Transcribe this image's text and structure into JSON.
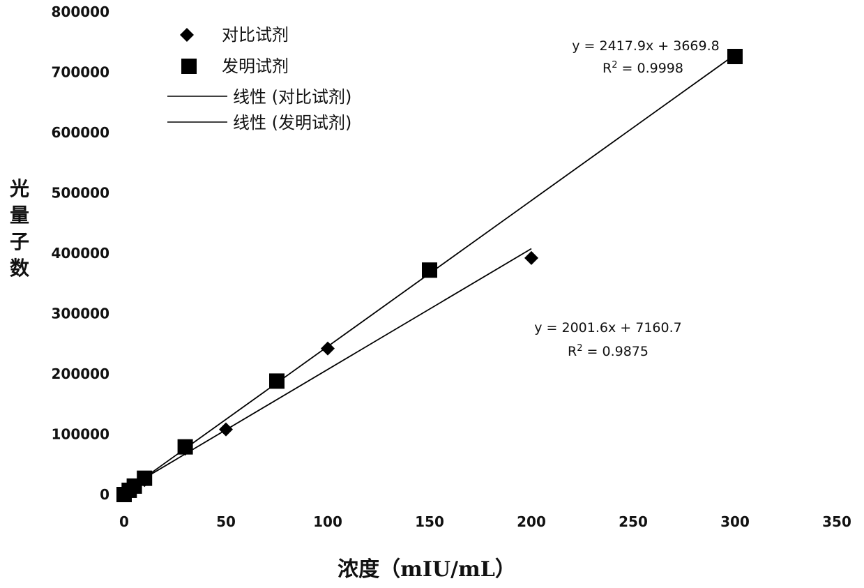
{
  "chart_data": {
    "type": "scatter",
    "title": "",
    "xlabel": "浓度（mIU/mL）",
    "ylabel": "光量子数",
    "xlim": [
      0,
      350
    ],
    "ylim": [
      0,
      800000
    ],
    "xticks": [
      "0",
      "50",
      "100",
      "150",
      "200",
      "250",
      "300",
      "350"
    ],
    "yticks": [
      "0",
      "100000",
      "200000",
      "300000",
      "400000",
      "500000",
      "600000",
      "700000",
      "800000"
    ],
    "legend_position": "top-left",
    "grid": false,
    "series": [
      {
        "name": "对比试剂",
        "marker": "diamond",
        "x": [
          0,
          2.5,
          5,
          10,
          30,
          50,
          100,
          200
        ],
        "y": [
          0,
          6000,
          12000,
          24000,
          76000,
          108000,
          242000,
          392000
        ]
      },
      {
        "name": "发明试剂",
        "marker": "square",
        "x": [
          0,
          2.5,
          5,
          10,
          30,
          75,
          150,
          300
        ],
        "y": [
          0,
          7000,
          14000,
          27000,
          79000,
          188000,
          372000,
          726000
        ]
      }
    ],
    "trendlines": [
      {
        "name": "线性 (对比试剂)",
        "slope": 2001.6,
        "intercept": 7160.7,
        "x_range": [
          0,
          200
        ],
        "equation": "y = 2001.6x + 7160.7",
        "r2_label": "R",
        "r2_value": " = 0.9875"
      },
      {
        "name": "线性 (发明试剂)",
        "slope": 2417.9,
        "intercept": 3669.8,
        "x_range": [
          0,
          300
        ],
        "equation": "y = 2417.9x + 3669.8",
        "r2_label": "R",
        "r2_value": " = 0.9998"
      }
    ],
    "colors": {
      "marker": "#000000",
      "line": "#000000"
    }
  }
}
